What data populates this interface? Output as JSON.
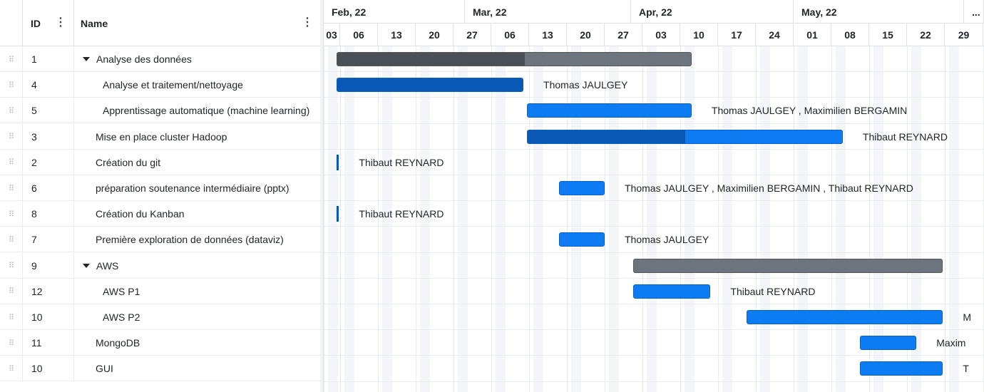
{
  "grid": {
    "columns": {
      "id": "ID",
      "name": "Name"
    },
    "rows": [
      {
        "id": "1",
        "name": "Analyse des données",
        "level": 0,
        "expandable": true
      },
      {
        "id": "4",
        "name": "Analyse et traitement/nettoyage",
        "level": 1,
        "expandable": false
      },
      {
        "id": "5",
        "name": "Apprentissage automatique (machine learning)",
        "level": 1,
        "expandable": false
      },
      {
        "id": "3",
        "name": "Mise en place cluster Hadoop",
        "level": 0,
        "expandable": false
      },
      {
        "id": "2",
        "name": "Création du git",
        "level": 0,
        "expandable": false
      },
      {
        "id": "6",
        "name": "préparation soutenance intermédiaire (pptx)",
        "level": 0,
        "expandable": false
      },
      {
        "id": "8",
        "name": "Création du Kanban",
        "level": 0,
        "expandable": false
      },
      {
        "id": "7",
        "name": "Première exploration de données (dataviz)",
        "level": 0,
        "expandable": false
      },
      {
        "id": "9",
        "name": "AWS",
        "level": 0,
        "expandable": true
      },
      {
        "id": "12",
        "name": "AWS P1",
        "level": 1,
        "expandable": false
      },
      {
        "id": "10",
        "name": "AWS P2",
        "level": 1,
        "expandable": false
      },
      {
        "id": "11",
        "name": "MongoDB",
        "level": 0,
        "expandable": false
      },
      {
        "id": "10",
        "name": "GUI",
        "level": 0,
        "expandable": false
      }
    ]
  },
  "timeline": {
    "months": [
      "Feb, 22",
      "Mar, 22",
      "Apr, 22",
      "May, 22",
      "..."
    ],
    "weeks": [
      "03",
      "06",
      "13",
      "20",
      "27",
      "06",
      "13",
      "20",
      "27",
      "03",
      "10",
      "17",
      "24",
      "01",
      "08",
      "15",
      "22",
      "29"
    ]
  },
  "bars": [
    {
      "kind": "summary",
      "start_week": 0.8,
      "end_week": 10.3,
      "progress": 0.53,
      "label": ""
    },
    {
      "kind": "task",
      "start_week": 0.8,
      "end_week": 5.85,
      "progress": 1.0,
      "label": "Thomas JAULGEY"
    },
    {
      "kind": "task",
      "start_week": 5.95,
      "end_week": 10.3,
      "progress": 0.0,
      "label": "Thomas JAULGEY , Maximilien BERGAMIN"
    },
    {
      "kind": "task",
      "start_week": 5.95,
      "end_week": 14.3,
      "progress": 0.5,
      "label": "Thibaut REYNARD"
    },
    {
      "kind": "milestone",
      "start_week": 0.8,
      "end_week": 0.8,
      "progress": 0.0,
      "label": "Thibaut REYNARD"
    },
    {
      "kind": "task",
      "start_week": 6.8,
      "end_week": 8.0,
      "progress": 0.0,
      "label": "Thomas JAULGEY , Maximilien BERGAMIN , Thibaut REYNARD"
    },
    {
      "kind": "milestone",
      "start_week": 0.8,
      "end_week": 0.8,
      "progress": 0.0,
      "label": "Thibaut REYNARD"
    },
    {
      "kind": "task",
      "start_week": 6.8,
      "end_week": 8.0,
      "progress": 0.0,
      "label": "Thomas JAULGEY"
    },
    {
      "kind": "summary",
      "start_week": 8.75,
      "end_week": 16.95,
      "progress": 0.0,
      "label": ""
    },
    {
      "kind": "task",
      "start_week": 8.75,
      "end_week": 10.8,
      "progress": 0.0,
      "label": "Thibaut REYNARD"
    },
    {
      "kind": "task",
      "start_week": 11.75,
      "end_week": 16.95,
      "progress": 0.0,
      "label": "M"
    },
    {
      "kind": "task",
      "start_week": 14.75,
      "end_week": 16.25,
      "progress": 0.0,
      "label": "Maxim"
    },
    {
      "kind": "task",
      "start_week": 14.75,
      "end_week": 16.95,
      "progress": 0.0,
      "label": "T"
    }
  ],
  "colors": {
    "summary": "#6c757d",
    "summary_progress": "#4a4f55",
    "task": "#0d7cf2",
    "task_progress": "#0a58b5"
  }
}
